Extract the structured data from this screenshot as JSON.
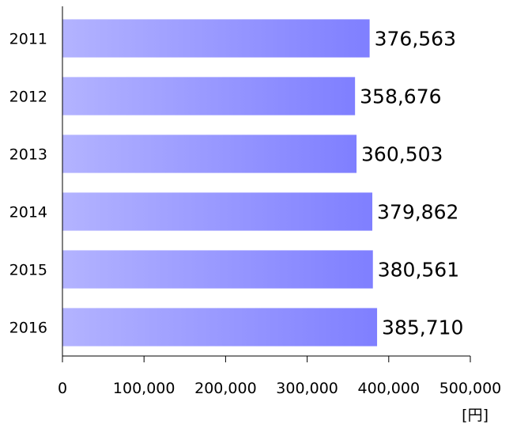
{
  "chart_data": {
    "type": "bar",
    "orientation": "horizontal",
    "categories": [
      "2011",
      "2012",
      "2013",
      "2014",
      "2015",
      "2016"
    ],
    "values": [
      376563,
      358676,
      360503,
      379862,
      380561,
      385710
    ],
    "value_labels": [
      "376,563",
      "358,676",
      "360,503",
      "379,862",
      "380,561",
      "385,710"
    ],
    "xlim": [
      0,
      500000
    ],
    "x_ticks": [
      0,
      100000,
      200000,
      300000,
      400000,
      500000
    ],
    "x_tick_labels": [
      "0",
      "100,000",
      "200,000",
      "300,000",
      "400,000",
      "500,000"
    ],
    "unit_label": "[円]",
    "title": "",
    "xlabel": "",
    "ylabel": "",
    "grid": false,
    "legend": "none",
    "colors": {
      "bar_start": "#b3b3ff",
      "bar_end": "#7f7fff",
      "axis": "#000000"
    }
  }
}
